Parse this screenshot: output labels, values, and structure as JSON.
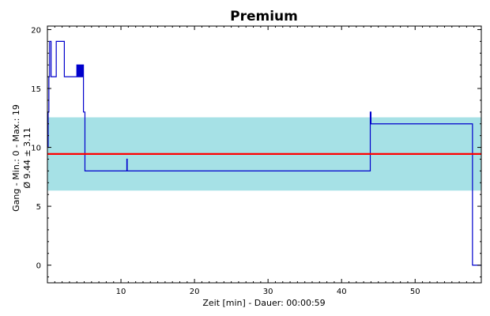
{
  "chart_data": {
    "type": "line",
    "title": "Premium",
    "xlabel": "Zeit [min] - Dauer: 00:00:59",
    "ylabel_lines": [
      "Gang - Min.: 0 - Max.: 19",
      "Ø 9.44 ± 3.11"
    ],
    "xlim": [
      0,
      59
    ],
    "ylim": [
      -1.5,
      20.3
    ],
    "x_ticks": [
      10,
      20,
      30,
      40,
      50
    ],
    "y_ticks": [
      0,
      5,
      10,
      15,
      20
    ],
    "grid": false,
    "mean": 9.44,
    "std": 3.11,
    "band": [
      6.33,
      12.55
    ],
    "colors": {
      "series": "#0000cc",
      "mean_line": "#ff0000",
      "band": "#a6e1e6",
      "frame": "#000000"
    },
    "series": [
      {
        "x": [
          0,
          0.1,
          0.1,
          0.2,
          0.2,
          0.3,
          0.3,
          0.5,
          0.5,
          1.2,
          1.2,
          2.3,
          2.3,
          3.3,
          3.3,
          4.0,
          4.0,
          4.1,
          4.1,
          4.2,
          4.2,
          4.3,
          4.3,
          4.4,
          4.4,
          4.5,
          4.5,
          4.6,
          4.6,
          4.7,
          4.7,
          4.8,
          4.8,
          4.9,
          4.9,
          5.1,
          5.1,
          10.8,
          10.8,
          10.85,
          10.85,
          43.9,
          43.9,
          44.0,
          44.0,
          57.8,
          57.8,
          59
        ],
        "y": [
          10,
          10,
          13,
          13,
          16,
          16,
          19,
          19,
          16,
          16,
          19,
          19,
          16,
          16,
          16,
          16,
          17,
          17,
          16,
          16,
          17,
          17,
          16,
          16,
          17,
          17,
          16,
          16,
          17,
          17,
          16,
          16,
          17,
          17,
          13,
          13,
          8,
          8,
          9,
          9,
          8,
          8,
          13,
          13,
          12,
          12,
          0,
          0
        ]
      }
    ]
  }
}
